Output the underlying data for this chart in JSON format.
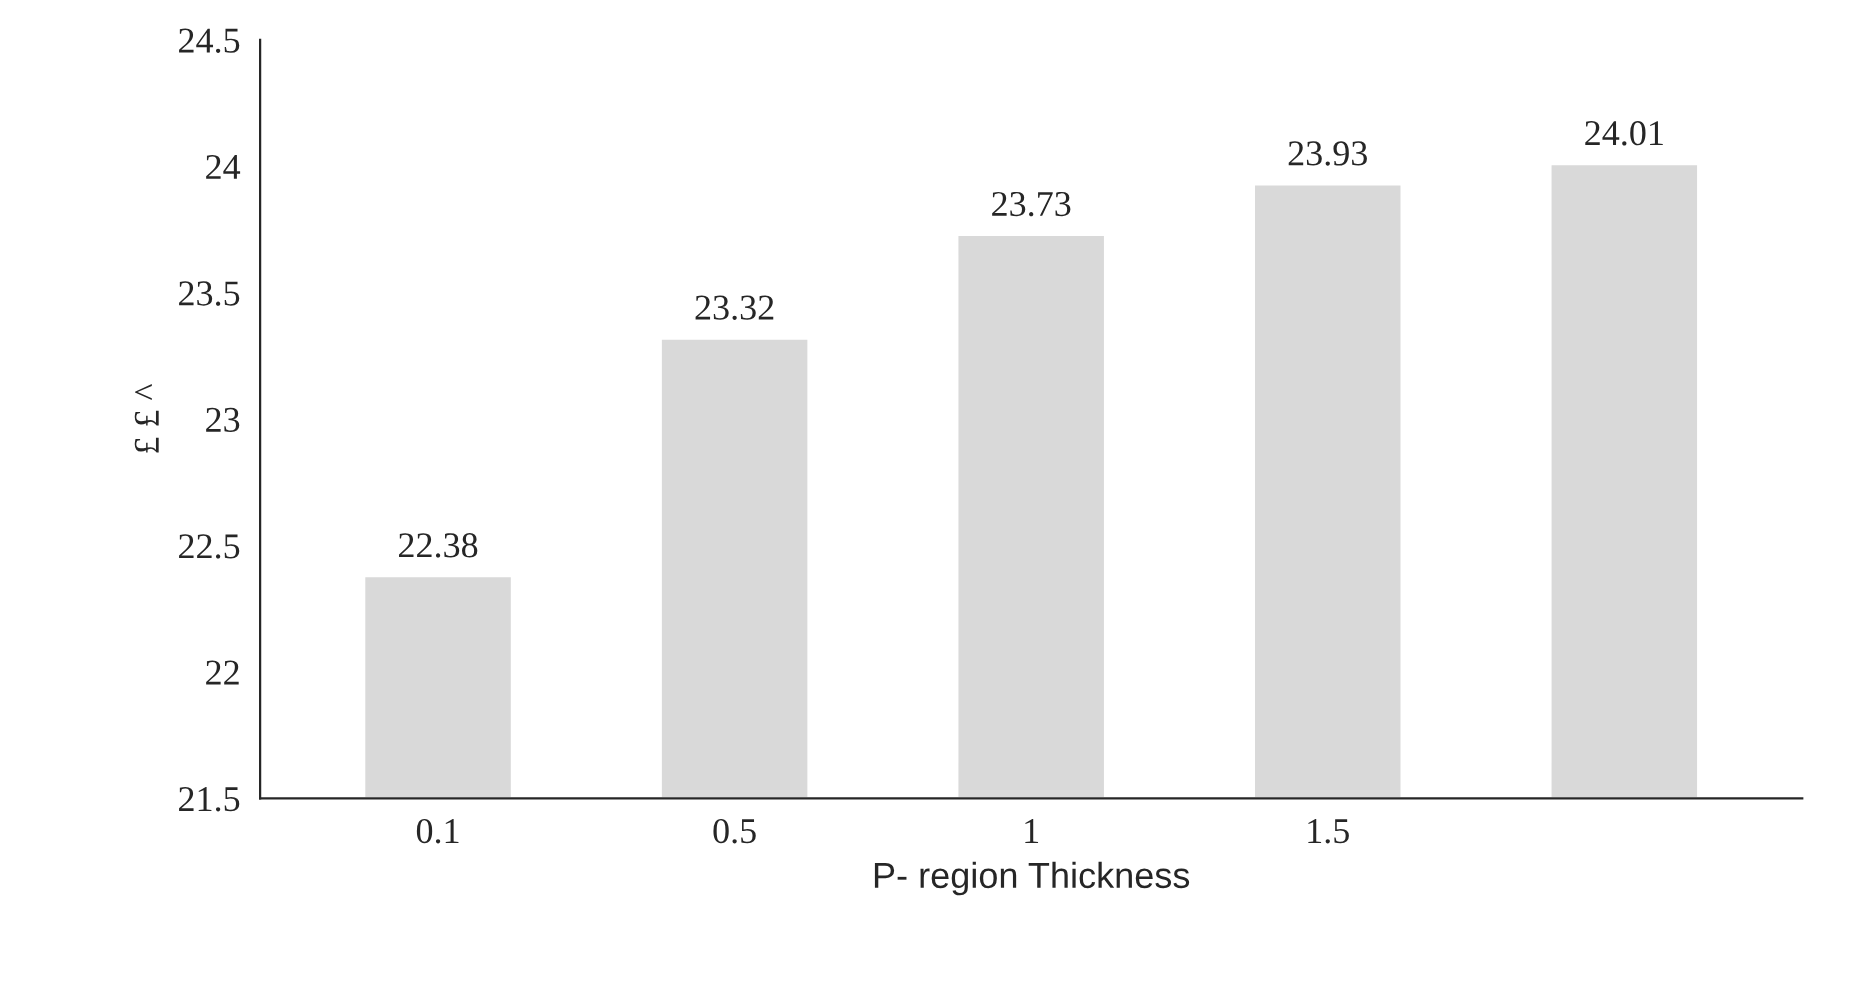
{
  "chart_data": {
    "type": "bar",
    "xlabel": "P- region Thickness",
    "ylabel": "£ £ ^",
    "categories": [
      "0.1",
      "0.5",
      "1",
      "1.5",
      null
    ],
    "values": [
      22.38,
      23.32,
      23.73,
      23.93,
      24.01
    ],
    "data_labels": true,
    "color": "#d9d9d9",
    "ylim": [
      21.5,
      24.5
    ],
    "yticks": [
      21.5,
      22,
      22.5,
      23,
      23.5,
      24,
      24.5
    ],
    "grid": false
  }
}
